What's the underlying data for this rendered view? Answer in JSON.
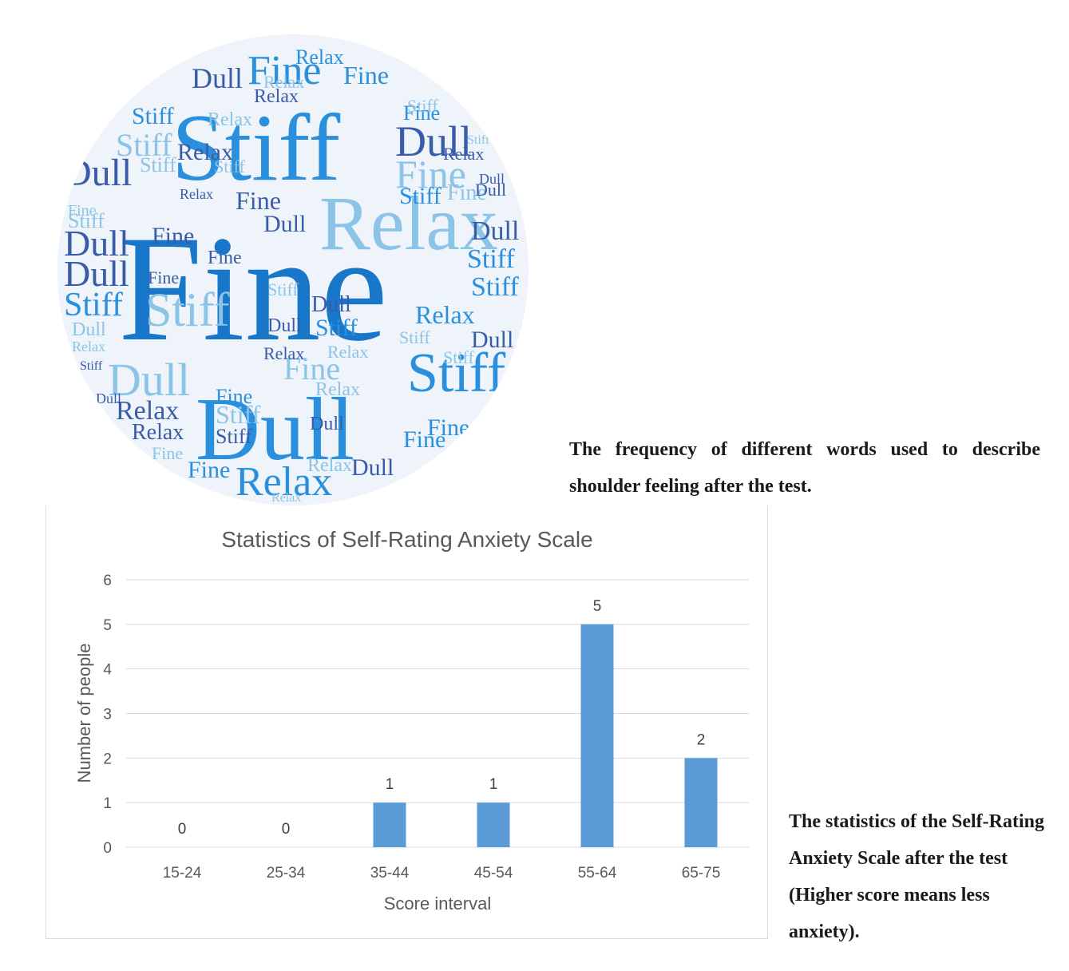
{
  "word_cloud": {
    "words": [
      "Fine",
      "Stiff",
      "Dull",
      "Relax"
    ],
    "colors": [
      "#1877c9",
      "#2a8fdc",
      "#3a5ba8",
      "#5aa8dc",
      "#8cc4e8",
      "#6f8fc8"
    ]
  },
  "captions": {
    "cloud": "The frequency of different words used to describe shoulder feeling after the test.",
    "chart": "The statistics of the Self-Rating Anxiety Scale after the test (Higher score means less anxiety)."
  },
  "chart_data": {
    "type": "bar",
    "title": "Statistics of Self-Rating Anxiety Scale",
    "xlabel": "Score interval",
    "ylabel": "Number of people",
    "categories": [
      "15-24",
      "25-34",
      "35-44",
      "45-54",
      "55-64",
      "65-75"
    ],
    "values": [
      0,
      0,
      1,
      1,
      5,
      2
    ],
    "ylim": [
      0,
      6
    ],
    "yticks": [
      0,
      1,
      2,
      3,
      4,
      5,
      6
    ],
    "grid": true,
    "bar_color": "#5b9bd5",
    "data_labels": true
  }
}
